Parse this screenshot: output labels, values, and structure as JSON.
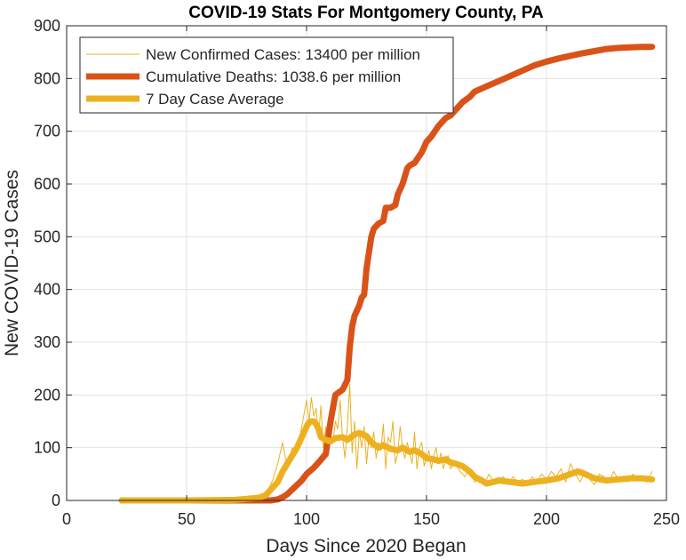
{
  "chart_data": {
    "type": "line",
    "title": "COVID-19 Stats For Montgomery County, PA",
    "xlabel": "Days Since 2020 Began",
    "ylabel": "New COVID-19 Cases",
    "xlim": [
      0,
      250
    ],
    "ylim": [
      0,
      900
    ],
    "xticks": [
      0,
      50,
      100,
      150,
      200,
      250
    ],
    "yticks": [
      0,
      100,
      200,
      300,
      400,
      500,
      600,
      700,
      800,
      900
    ],
    "grid": true,
    "legend_position": "top-left",
    "series": [
      {
        "name": "New Confirmed Cases: 13400 per million",
        "color": "#edb120",
        "style": "thin",
        "x": [
          23,
          40,
          60,
          70,
          75,
          78,
          80,
          82,
          84,
          86,
          88,
          90,
          92,
          94,
          96,
          98,
          100,
          101,
          102,
          103,
          104,
          105,
          106,
          107,
          108,
          109,
          110,
          111,
          112,
          113,
          114,
          115,
          116,
          117,
          118,
          119,
          120,
          121,
          122,
          123,
          124,
          125,
          126,
          127,
          128,
          129,
          130,
          131,
          132,
          133,
          134,
          135,
          136,
          137,
          138,
          139,
          140,
          141,
          142,
          143,
          144,
          145,
          146,
          147,
          148,
          149,
          150,
          151,
          152,
          153,
          154,
          155,
          156,
          157,
          158,
          159,
          160,
          162,
          164,
          166,
          168,
          170,
          172,
          174,
          176,
          178,
          180,
          182,
          184,
          186,
          188,
          190,
          192,
          194,
          196,
          198,
          200,
          202,
          204,
          206,
          208,
          210,
          212,
          214,
          216,
          218,
          220,
          222,
          224,
          226,
          228,
          230,
          232,
          234,
          236,
          238,
          240,
          242,
          244
        ],
        "values": [
          0,
          0,
          0,
          1,
          3,
          5,
          8,
          12,
          20,
          40,
          70,
          110,
          60,
          100,
          90,
          140,
          190,
          150,
          195,
          160,
          175,
          120,
          180,
          100,
          140,
          95,
          125,
          110,
          150,
          135,
          190,
          120,
          80,
          140,
          220,
          90,
          150,
          60,
          130,
          100,
          140,
          70,
          120,
          100,
          130,
          80,
          110,
          95,
          145,
          60,
          120,
          110,
          150,
          70,
          90,
          140,
          100,
          80,
          110,
          90,
          70,
          130,
          60,
          100,
          110,
          65,
          80,
          95,
          60,
          85,
          100,
          70,
          90,
          60,
          75,
          85,
          60,
          70,
          55,
          45,
          60,
          35,
          40,
          30,
          50,
          35,
          40,
          45,
          30,
          45,
          35,
          40,
          30,
          45,
          35,
          50,
          40,
          55,
          45,
          60,
          35,
          70,
          50,
          35,
          55,
          40,
          30,
          50,
          45,
          35,
          55,
          40,
          45,
          35,
          50,
          40,
          45,
          35,
          55
        ],
        "legend_label": "New Confirmed Cases: 13400 per million"
      },
      {
        "name": "Cumulative Deaths: 1038.6 per million",
        "color": "#d95319",
        "style": "thick",
        "x": [
          23,
          50,
          70,
          80,
          85,
          88,
          90,
          92,
          95,
          98,
          100,
          103,
          105,
          108,
          110,
          112,
          115,
          117,
          118,
          119,
          120,
          122,
          123,
          124,
          125,
          127,
          128,
          130,
          132,
          133,
          135,
          137,
          138,
          140,
          142,
          143,
          145,
          148,
          150,
          152,
          155,
          158,
          160,
          163,
          165,
          168,
          170,
          175,
          180,
          185,
          190,
          195,
          200,
          205,
          210,
          215,
          220,
          225,
          230,
          235,
          240,
          244
        ],
        "values": [
          0,
          0,
          0,
          0,
          0,
          2,
          6,
          12,
          25,
          38,
          50,
          62,
          72,
          88,
          150,
          200,
          210,
          228,
          290,
          330,
          350,
          370,
          385,
          390,
          440,
          500,
          515,
          525,
          530,
          555,
          555,
          560,
          580,
          600,
          630,
          635,
          640,
          660,
          680,
          690,
          710,
          725,
          730,
          745,
          755,
          765,
          775,
          785,
          795,
          805,
          815,
          825,
          832,
          838,
          843,
          848,
          852,
          856,
          858,
          859,
          860,
          860
        ],
        "legend_label": "Cumulative Deaths: 1038.6 per million"
      },
      {
        "name": "7 Day Case Average",
        "color": "#edb120",
        "style": "thick",
        "x": [
          23,
          50,
          70,
          75,
          80,
          83,
          85,
          88,
          90,
          92,
          94,
          96,
          98,
          100,
          101,
          102,
          103,
          104,
          105,
          106,
          108,
          110,
          112,
          115,
          117,
          120,
          122,
          125,
          127,
          130,
          132,
          135,
          138,
          140,
          143,
          145,
          148,
          150,
          153,
          155,
          158,
          160,
          162,
          165,
          168,
          170,
          173,
          175,
          178,
          180,
          185,
          190,
          195,
          200,
          205,
          210,
          213,
          215,
          220,
          225,
          230,
          235,
          240,
          244
        ],
        "values": [
          0,
          0,
          1,
          3,
          5,
          10,
          20,
          35,
          55,
          70,
          85,
          100,
          120,
          140,
          148,
          150,
          150,
          145,
          135,
          120,
          115,
          112,
          118,
          120,
          115,
          125,
          128,
          122,
          110,
          100,
          105,
          98,
          95,
          100,
          92,
          95,
          88,
          80,
          78,
          75,
          78,
          72,
          70,
          65,
          55,
          45,
          38,
          32,
          35,
          38,
          35,
          32,
          35,
          38,
          42,
          50,
          55,
          52,
          42,
          38,
          40,
          42,
          42,
          40
        ],
        "legend_label": "7 Day Case Average"
      }
    ]
  }
}
